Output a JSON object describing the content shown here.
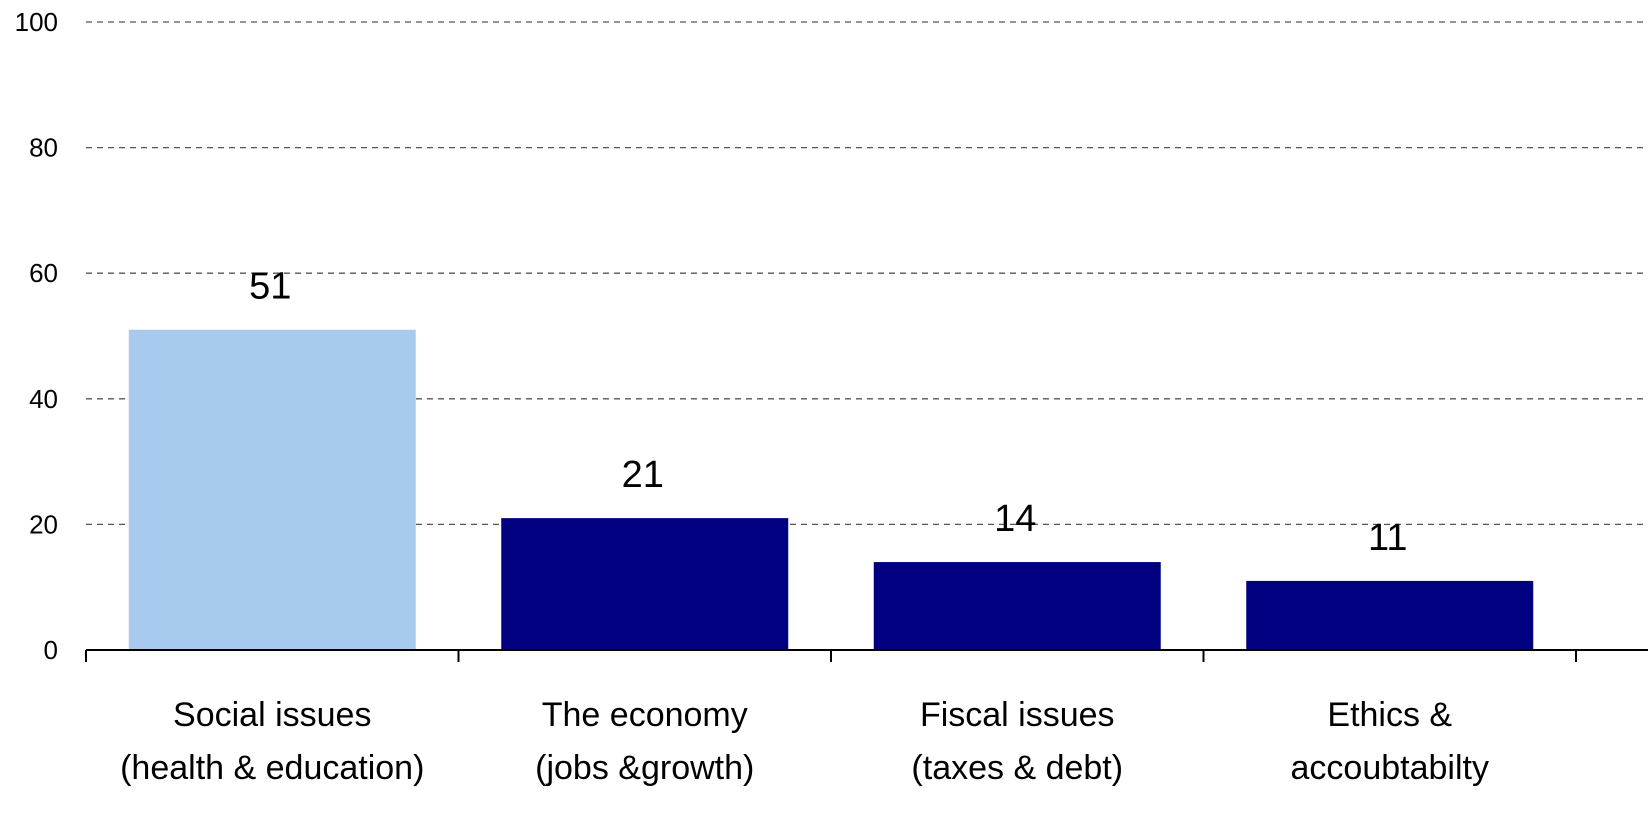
{
  "chart_data": {
    "type": "bar",
    "categories": [
      [
        "Social issues",
        "(health & education)"
      ],
      [
        "The economy",
        "(jobs &growth)"
      ],
      [
        "Fiscal issues",
        "(taxes & debt)"
      ],
      [
        "Ethics &",
        "accoubtabilty"
      ]
    ],
    "values": [
      51,
      21,
      14,
      11
    ],
    "data_labels": [
      "51",
      "21",
      "14",
      "11"
    ],
    "colors": [
      "#a8caee",
      "#000080",
      "#000080",
      "#000080"
    ],
    "ylim": [
      0,
      100
    ],
    "yticks": [
      0,
      20,
      40,
      60,
      80,
      100
    ],
    "grid": true,
    "title": "",
    "xlabel": "",
    "ylabel": ""
  }
}
